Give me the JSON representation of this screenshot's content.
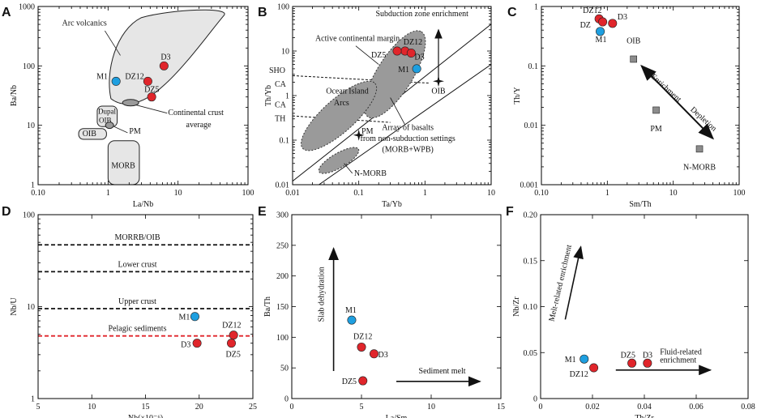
{
  "colors": {
    "red": "#e0252b",
    "blue": "#1e9fe0",
    "gray_field": "#e6e6e6",
    "dark_field": "#9a9a9a",
    "square": "#8c8c8c",
    "pelagic": "#e0252b"
  },
  "chart_data": [
    {
      "id": "A",
      "type": "scatter",
      "xscale": "log",
      "yscale": "log",
      "xlim": [
        0.1,
        100
      ],
      "ylim": [
        1,
        1000
      ],
      "xlabel": "La/Nb",
      "ylabel": "Ba/Nb",
      "xticks": [
        "0.10",
        "1",
        "10",
        "100"
      ],
      "yticks": [
        "1",
        "10",
        "100",
        "1000"
      ],
      "points": [
        {
          "label": "M1",
          "x": 1.3,
          "y": 55,
          "color": "blue"
        },
        {
          "label": "DZ12",
          "x": 3.7,
          "y": 55,
          "color": "red"
        },
        {
          "label": "D3",
          "x": 6.3,
          "y": 100,
          "color": "red"
        },
        {
          "label": "DZ5",
          "x": 4.2,
          "y": 30,
          "color": "red"
        }
      ],
      "fields": [
        "Arc volcanics",
        "Dupal OIB",
        "OIB",
        "PM",
        "MORB"
      ],
      "annotations": [
        "Continental crust",
        "average"
      ]
    },
    {
      "id": "B",
      "type": "scatter",
      "xscale": "log",
      "yscale": "log",
      "xlim": [
        0.01,
        10
      ],
      "ylim": [
        0.01,
        100
      ],
      "xlabel": "Ta/Yb",
      "ylabel": "Th/Yb",
      "xticks": [
        "0.01",
        "0.1",
        "1",
        "10"
      ],
      "yticks": [
        "0.01",
        "0.1",
        "1",
        "10",
        "100"
      ],
      "points": [
        {
          "label": "DZ12",
          "x": 0.5,
          "y": 10,
          "color": "red"
        },
        {
          "label": "DZ5",
          "x": 0.38,
          "y": 10,
          "color": "red"
        },
        {
          "label": "D3",
          "x": 0.62,
          "y": 9,
          "color": "red"
        },
        {
          "label": "M1",
          "x": 0.75,
          "y": 4,
          "color": "blue"
        }
      ],
      "labels": [
        "Subduction zone enrichment",
        "Active continental margin",
        "SHO",
        "CA",
        "CA",
        "TH",
        "Ocean Island",
        "Arcs",
        "OIB",
        "PM",
        "N-MORB",
        "Array of basalts",
        "from non-subduction settings",
        "(MORB+WPB)"
      ]
    },
    {
      "id": "C",
      "type": "scatter",
      "xscale": "log",
      "yscale": "log",
      "xlim": [
        0.1,
        100
      ],
      "ylim": [
        0.001,
        1
      ],
      "xlabel": "Sm/Th",
      "ylabel": "Th/Y",
      "xticks": [
        "0.10",
        "1",
        "10",
        "100"
      ],
      "yticks": [
        "0.001",
        "0.01",
        "0.1",
        "1"
      ],
      "points": [
        {
          "label": "DZ12",
          "x": 0.75,
          "y": 0.62,
          "color": "red"
        },
        {
          "label": "DZ",
          "x": 0.85,
          "y": 0.55,
          "color": "red"
        },
        {
          "label": "D3",
          "x": 1.2,
          "y": 0.52,
          "color": "red"
        },
        {
          "label": "M1",
          "x": 0.78,
          "y": 0.38,
          "color": "blue"
        }
      ],
      "references": [
        {
          "label": "OIB",
          "x": 2.5,
          "y": 0.13
        },
        {
          "label": "PM",
          "x": 5.5,
          "y": 0.018
        },
        {
          "label": "N-MORB",
          "x": 25,
          "y": 0.004
        }
      ],
      "labels": [
        "Enrichment",
        "Depletion"
      ]
    },
    {
      "id": "D",
      "type": "scatter",
      "xscale": "linear",
      "yscale": "log",
      "xlim": [
        5,
        25
      ],
      "ylim": [
        1,
        100
      ],
      "xlabel": "Nb(×10⁻⁶)",
      "ylabel": "Nb/U",
      "xticks": [
        "5",
        "10",
        "15",
        "20",
        "25"
      ],
      "yticks": [
        "1",
        "10",
        "100"
      ],
      "hlines": [
        {
          "label": "MORRB/OIB",
          "y": 47
        },
        {
          "label": "Lower crust",
          "y": 24
        },
        {
          "label": "Upper crust",
          "y": 9.5
        },
        {
          "label": "Pelagic sediments",
          "y": 4.8
        }
      ],
      "points": [
        {
          "label": "M1",
          "x": 19.6,
          "y": 7.8,
          "color": "blue"
        },
        {
          "label": "DZ12",
          "x": 23.2,
          "y": 4.9,
          "color": "red"
        },
        {
          "label": "DZ5",
          "x": 23.0,
          "y": 4.0,
          "color": "red"
        },
        {
          "label": "D3",
          "x": 19.8,
          "y": 4.0,
          "color": "red"
        }
      ]
    },
    {
      "id": "E",
      "type": "scatter",
      "xscale": "linear",
      "yscale": "linear",
      "xlim": [
        0,
        15
      ],
      "ylim": [
        0,
        300
      ],
      "xlabel": "La/Sm",
      "ylabel": "Ba/Th",
      "xticks": [
        "0",
        "5",
        "10",
        "15"
      ],
      "yticks": [
        "0",
        "50",
        "100",
        "150",
        "200",
        "250",
        "300"
      ],
      "points": [
        {
          "label": "M1",
          "x": 4.3,
          "y": 128,
          "color": "blue"
        },
        {
          "label": "DZ12",
          "x": 5.0,
          "y": 84,
          "color": "red"
        },
        {
          "label": "D3",
          "x": 5.9,
          "y": 73,
          "color": "red"
        },
        {
          "label": "DZ5",
          "x": 5.1,
          "y": 29,
          "color": "red"
        }
      ],
      "labels": [
        "Slab dehydration",
        "Sediment melt"
      ]
    },
    {
      "id": "F",
      "type": "scatter",
      "xscale": "linear",
      "yscale": "linear",
      "xlim": [
        0,
        0.08
      ],
      "ylim": [
        0,
        0.2
      ],
      "xlabel": "Th/Zr",
      "ylabel": "Nb/Zr",
      "xticks": [
        "0",
        "0.02",
        "0.04",
        "0.06",
        "0.08"
      ],
      "yticks": [
        "0",
        "0.05",
        "0.10",
        "0.15",
        "0.20"
      ],
      "points": [
        {
          "label": "M1",
          "x": 0.0168,
          "y": 0.043,
          "color": "blue"
        },
        {
          "label": "DZ12",
          "x": 0.0205,
          "y": 0.0335,
          "color": "red"
        },
        {
          "label": "DZ5",
          "x": 0.0352,
          "y": 0.0385,
          "color": "red"
        },
        {
          "label": "D3",
          "x": 0.0412,
          "y": 0.0385,
          "color": "red"
        }
      ],
      "labels": [
        "Melt-related enrichment",
        "Fluid-related",
        "enrichment"
      ]
    }
  ]
}
